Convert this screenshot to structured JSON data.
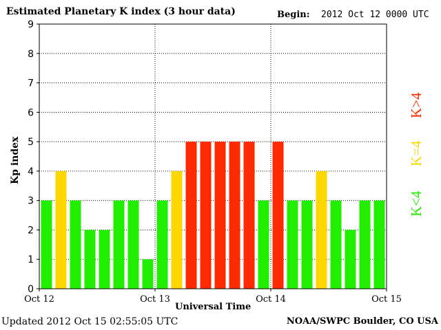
{
  "header": {
    "title": "Estimated Planetary K index (3 hour data)",
    "begin_label": "Begin:",
    "begin_value": "2012 Oct 12 0000 UTC"
  },
  "footer": {
    "updated": "Updated 2012 Oct 15 02:55:05 UTC",
    "credit": "NOAA/SWPC Boulder, CO USA"
  },
  "legend": [
    {
      "label": "K<4",
      "color": "#22ee00"
    },
    {
      "label": "K=4",
      "color": "#ffd700"
    },
    {
      "label": "K>4",
      "color": "#ff2a00"
    }
  ],
  "chart_data": {
    "type": "bar",
    "title": "Estimated Planetary K index (3 hour data)",
    "xlabel": "Universal Time",
    "ylabel": "Kp index",
    "ylim": [
      0,
      9
    ],
    "yticks": [
      "0",
      "1",
      "2",
      "3",
      "4",
      "5",
      "6",
      "7",
      "8",
      "9"
    ],
    "xticks": [
      "Oct 12",
      "Oct 13",
      "Oct 14",
      "Oct 15"
    ],
    "values": [
      3,
      4,
      3,
      2,
      2,
      3,
      3,
      1,
      3,
      4,
      5,
      5,
      5,
      5,
      5,
      3,
      5,
      3,
      3,
      4,
      3,
      2,
      3,
      3
    ],
    "colors": {
      "low": "#22ee00",
      "equal": "#ffd700",
      "high": "#ff2a00"
    },
    "grid": true
  }
}
